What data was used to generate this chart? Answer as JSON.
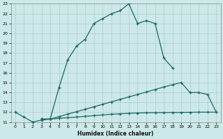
{
  "xlabel": "Humidex (Indice chaleur)",
  "xlim": [
    0,
    23
  ],
  "ylim": [
    11,
    23
  ],
  "xticks": [
    0,
    1,
    2,
    3,
    4,
    5,
    6,
    7,
    8,
    9,
    10,
    11,
    12,
    13,
    14,
    15,
    16,
    17,
    18,
    19,
    20,
    21,
    22,
    23
  ],
  "yticks": [
    11,
    12,
    13,
    14,
    15,
    16,
    17,
    18,
    19,
    20,
    21,
    22,
    23
  ],
  "bg_color": "#cde8e8",
  "line_color": "#1a6666",
  "grid_color": "#aacccc",
  "line1_x": [
    0,
    1,
    2,
    3,
    4,
    5,
    6,
    7,
    8,
    9,
    10,
    11,
    12,
    13,
    14,
    15,
    16,
    17,
    18
  ],
  "line1_y": [
    12.0,
    11.5,
    11.0,
    11.2,
    11.3,
    14.5,
    17.3,
    18.7,
    19.4,
    21.0,
    21.5,
    22.0,
    22.3,
    23.0,
    21.0,
    21.3,
    21.0,
    17.5,
    16.5
  ],
  "line2_x": [
    3,
    4,
    5,
    6,
    7,
    8,
    9,
    10,
    11,
    12,
    13,
    14,
    15,
    16,
    17,
    18,
    19,
    20,
    21,
    22,
    23
  ],
  "line2_y": [
    11.3,
    11.3,
    11.55,
    11.8,
    12.05,
    12.3,
    12.55,
    12.8,
    13.05,
    13.3,
    13.55,
    13.8,
    14.05,
    14.3,
    14.55,
    14.8,
    15.0,
    14.0,
    14.0,
    13.8,
    12.0
  ],
  "line3_x": [
    3,
    4,
    5,
    6,
    7,
    8,
    9,
    10,
    11,
    12,
    13,
    14,
    15,
    16,
    17,
    18,
    19,
    20,
    21,
    22,
    23
  ],
  "line3_y": [
    11.3,
    11.3,
    11.37,
    11.44,
    11.51,
    11.58,
    11.65,
    11.72,
    11.79,
    11.84,
    11.88,
    11.92,
    11.94,
    11.95,
    11.96,
    11.97,
    11.98,
    11.99,
    12.0,
    12.0,
    12.0
  ]
}
